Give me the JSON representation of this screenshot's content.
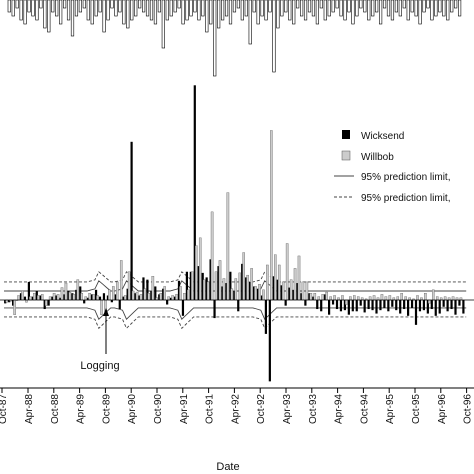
{
  "chart_data": {
    "type": "bar",
    "xlabel": "Date",
    "ylabel": "",
    "annotation": "Logging",
    "x_ticks": [
      "Apr-88",
      "Oct-88",
      "Apr-89",
      "Oct-89",
      "Apr-90",
      "Oct-90",
      "Apr-91",
      "Oct-91",
      "Apr-92",
      "Oct-92",
      "Apr-93",
      "Oct-93",
      "Apr-94",
      "Oct-94",
      "Apr-95",
      "Oct-95",
      "Apr-96",
      "Oct-96"
    ],
    "x_start": "Oct-87",
    "legend": {
      "placement": "right",
      "entries": [
        {
          "label": "Wicksend",
          "kind": "bar",
          "color": "#000000"
        },
        {
          "label": "Willbob",
          "kind": "bar",
          "color": "#cccccc"
        },
        {
          "label": "95% prediction limit,",
          "kind": "line",
          "style": "solid"
        },
        {
          "label": "95% prediction limit,",
          "kind": "line",
          "style": "dashed"
        }
      ]
    },
    "series": [
      {
        "name": "Wicksend",
        "color": "#000000",
        "values": [
          -0.3,
          -0.2,
          -0.5,
          0,
          0.6,
          0.3,
          1.6,
          0.3,
          0.8,
          0.4,
          -0.8,
          -0.5,
          0.3,
          0.4,
          0.2,
          0.5,
          0.8,
          0.6,
          0.9,
          1.2,
          -0.3,
          0.2,
          0.5,
          0.9,
          0.3,
          0.6,
          0.4,
          -0.2,
          0.5,
          -0.8,
          0.3,
          1.0,
          14.0,
          0.6,
          0.4,
          2.0,
          1.8,
          0.8,
          1.2,
          0.5,
          1.0,
          -0.4,
          0.2,
          0.3,
          1.7,
          -1.4,
          2.5,
          2.5,
          19.0,
          3.0,
          2.4,
          2.0,
          3.6,
          -1.6,
          3.0,
          1.2,
          1.5,
          2.5,
          0.8,
          -1.0,
          3.2,
          2.0,
          1.6,
          1.2,
          1.0,
          0.4,
          -3.0,
          -7.2,
          2.1,
          1.8,
          1.3,
          -0.5,
          1.1,
          0.9,
          1.5,
          0.6,
          -0.5,
          0.6,
          0.3,
          -0.8,
          -1.0,
          0.5,
          -1.3,
          -0.4,
          -0.8,
          -1.0,
          -0.9,
          -1.3,
          -1.0,
          -1.0,
          -0.5,
          -1.1,
          -0.8,
          -0.9,
          -1.2,
          -0.9,
          -0.7,
          -1.0,
          -0.6,
          -0.9,
          -1.2,
          -0.8,
          -1.4,
          -0.7,
          -2.2,
          -1.0,
          -0.9,
          -1.2,
          -0.8,
          -1.4,
          -1.2,
          -0.6,
          -1.0,
          -0.8,
          -1.3,
          -0.5,
          -1.2
        ]
      },
      {
        "name": "Willbob",
        "color": "#cccccc",
        "values": [
          -0.2,
          -0.1,
          -1.3,
          0.4,
          0.8,
          -0.2,
          0.3,
          0.6,
          0.4,
          0.5,
          -0.5,
          0.3,
          0.6,
          0.5,
          1.1,
          1.5,
          0.7,
          0.5,
          1.8,
          0.6,
          0.3,
          0.6,
          0.5,
          0.4,
          -1.3,
          -1.0,
          0.9,
          1.2,
          1.6,
          3.5,
          0.4,
          2.5,
          0.8,
          0.7,
          0.5,
          1.0,
          0.6,
          2.1,
          0.2,
          0.6,
          1.2,
          0.3,
          0.4,
          0.5,
          1.2,
          0.6,
          0.9,
          2.5,
          4.8,
          5.5,
          1.8,
          1.6,
          7.8,
          2.5,
          3.5,
          1.9,
          9.5,
          1.0,
          1.9,
          2.4,
          4.2,
          2.2,
          2.8,
          1.2,
          1.4,
          0.9,
          3.1,
          15.0,
          4.0,
          3.1,
          1.6,
          5.0,
          1.8,
          2.8,
          3.9,
          1.6,
          1.6,
          0.6,
          0.6,
          0.3,
          0.5,
          0.7,
          0.3,
          0.4,
          0.2,
          0.4,
          -0.4,
          0.3,
          0.4,
          0.3,
          0.2,
          0.1,
          0.3,
          0.4,
          0.2,
          0.5,
          0.3,
          0.4,
          0.2,
          0.3,
          0.6,
          0.3,
          0.2,
          0.1,
          0.4,
          0.2,
          0.6,
          -0.3,
          0.9,
          0.3,
          0.2,
          0.3,
          0.2,
          0.3,
          0.2,
          0.2
        ]
      }
    ],
    "top_panel_bars": [
      -3,
      -4,
      -2,
      -5,
      -6,
      -3,
      -4,
      -5,
      -2,
      -7,
      -8,
      -3,
      -4,
      -6,
      -2,
      -5,
      -9,
      -4,
      -3,
      -2,
      -5,
      -6,
      -4,
      -3,
      -8,
      -5,
      -2,
      -4,
      -3,
      -6,
      -7,
      -5,
      -4,
      -2,
      -3,
      -4,
      -5,
      -6,
      -3,
      -12,
      -5,
      -4,
      -3,
      -2,
      -6,
      -5,
      -4,
      -3,
      -5,
      -4,
      -8,
      -6,
      -19,
      -7,
      -5,
      -4,
      -6,
      -3,
      -2,
      -5,
      -4,
      -11,
      -3,
      -6,
      -4,
      -5,
      -3,
      -18,
      -7,
      -4,
      -3,
      -5,
      -6,
      -2,
      -4,
      -5,
      -3,
      -4,
      -6,
      -2,
      -5,
      -4,
      -3,
      -2,
      -4,
      -5,
      -3,
      -6,
      -4,
      -2,
      -3,
      -5,
      -4,
      -3,
      -6,
      -2,
      -4,
      -5,
      -3,
      -4,
      -2,
      -5,
      -3,
      -4,
      -6,
      -3,
      -2,
      -5,
      -4,
      -3,
      -4,
      -5,
      -3,
      -2,
      -4
    ],
    "prediction_limits": {
      "solid": {
        "upper": 0.8,
        "lower": -0.7
      },
      "dashed": {
        "upper": 1.6,
        "lower": -1.5
      }
    }
  }
}
